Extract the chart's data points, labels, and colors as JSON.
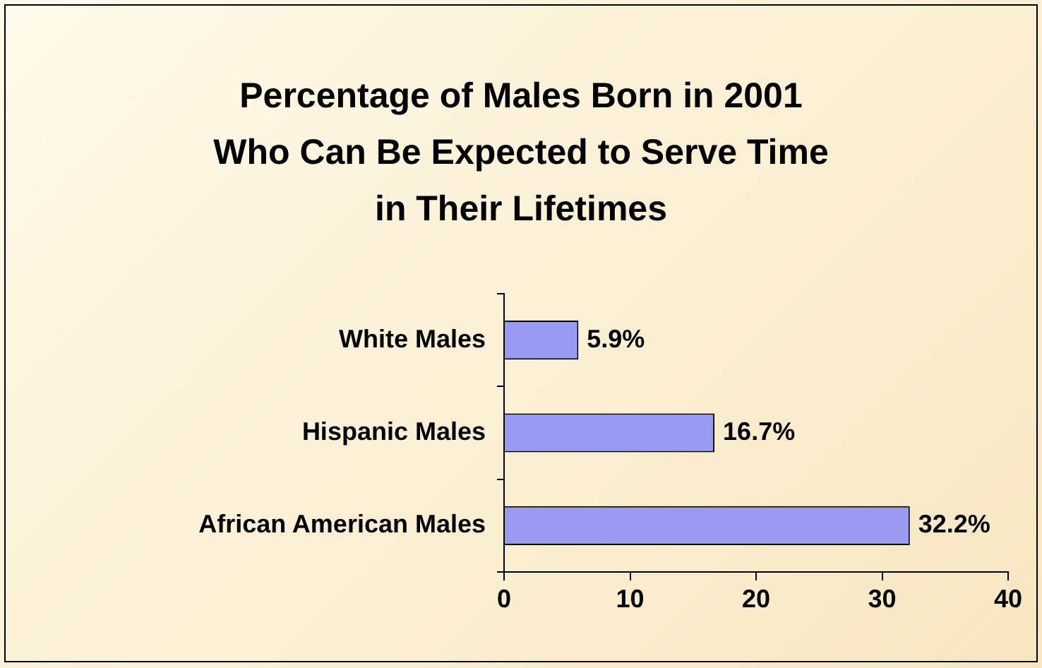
{
  "chart_data": {
    "type": "bar",
    "orientation": "horizontal",
    "title": "Percentage of Males Born in 2001 Who Can Be Expected to Serve Time in Their Lifetimes",
    "categories": [
      "White Males",
      "Hispanic Males",
      "African American Males"
    ],
    "values": [
      5.9,
      16.7,
      32.2
    ],
    "value_labels": [
      "5.9%",
      "16.7%",
      "32.2%"
    ],
    "color": "#9a9af0",
    "xlim": [
      0,
      40
    ],
    "xticks": [
      0,
      10,
      20,
      30,
      40
    ],
    "grid": false,
    "legend": false
  }
}
